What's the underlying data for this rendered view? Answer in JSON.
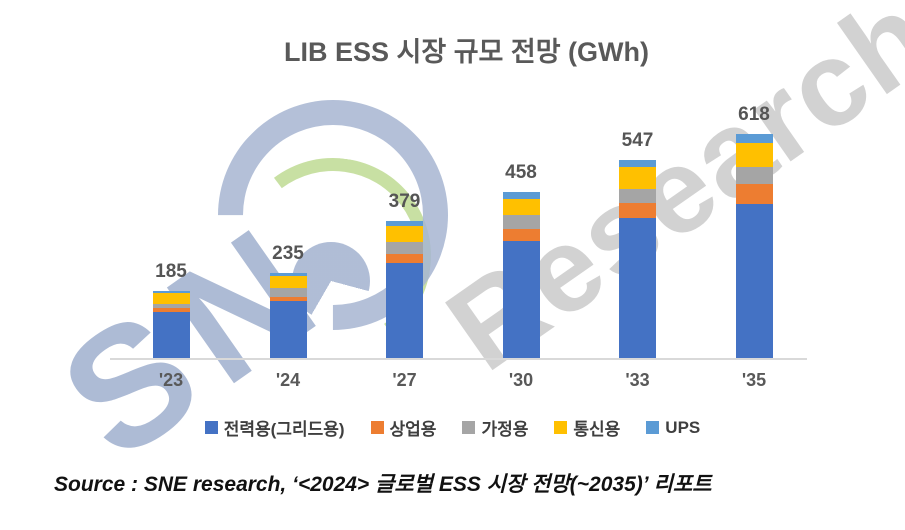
{
  "title": "LIB ESS 시장 규모 전망 (GWh)",
  "watermark": {
    "part1": "SN",
    "part2": "Research"
  },
  "source_note": "Source : SNE research, ‘<2024> 글로벌 ESS 시장 전망(~2035)’ 리포트",
  "colors": {
    "grid_blue": "#4472C4",
    "commercial_orange": "#ED7D31",
    "residential_gray": "#A5A5A5",
    "telecom_yellow": "#FFC000",
    "ups_lightblue": "#5B9BD5",
    "axis_gray": "#D9D9D9",
    "label_gray": "#595959",
    "watermark_blue": "#A7B6D2",
    "watermark_gray": "#C9C9C9",
    "watermark_green": "#C6DF9F"
  },
  "chart_data": {
    "type": "bar",
    "stacked": true,
    "unit": "GWh",
    "title": "LIB ESS 시장 규모 전망 (GWh)",
    "categories": [
      "'23",
      "'24",
      "'27",
      "'30",
      "'33",
      "'35"
    ],
    "totals": [
      185,
      235,
      379,
      458,
      547,
      618
    ],
    "series": [
      {
        "key": "grid",
        "name": "전력용(그리드용)",
        "color": "#4472C4",
        "values": [
          126,
          158,
          262,
          323,
          387,
          425
        ]
      },
      {
        "key": "commercial",
        "name": "상업용",
        "color": "#ED7D31",
        "values": [
          12,
          10,
          24,
          32,
          41,
          55
        ]
      },
      {
        "key": "residential",
        "name": "가정용",
        "color": "#A5A5A5",
        "values": [
          10,
          26,
          35,
          39,
          39,
          46
        ]
      },
      {
        "key": "telecom",
        "name": "통신용",
        "color": "#FFC000",
        "values": [
          30,
          32,
          44,
          44,
          60,
          67
        ]
      },
      {
        "key": "ups",
        "name": "UPS",
        "color": "#5B9BD5",
        "values": [
          7,
          9,
          14,
          20,
          20,
          25
        ]
      }
    ],
    "xlabel": "",
    "ylabel": "",
    "ylim": [
      0,
      660
    ],
    "grid": false,
    "legend_position": "bottom",
    "value_labels": "totals shown above each bar"
  }
}
